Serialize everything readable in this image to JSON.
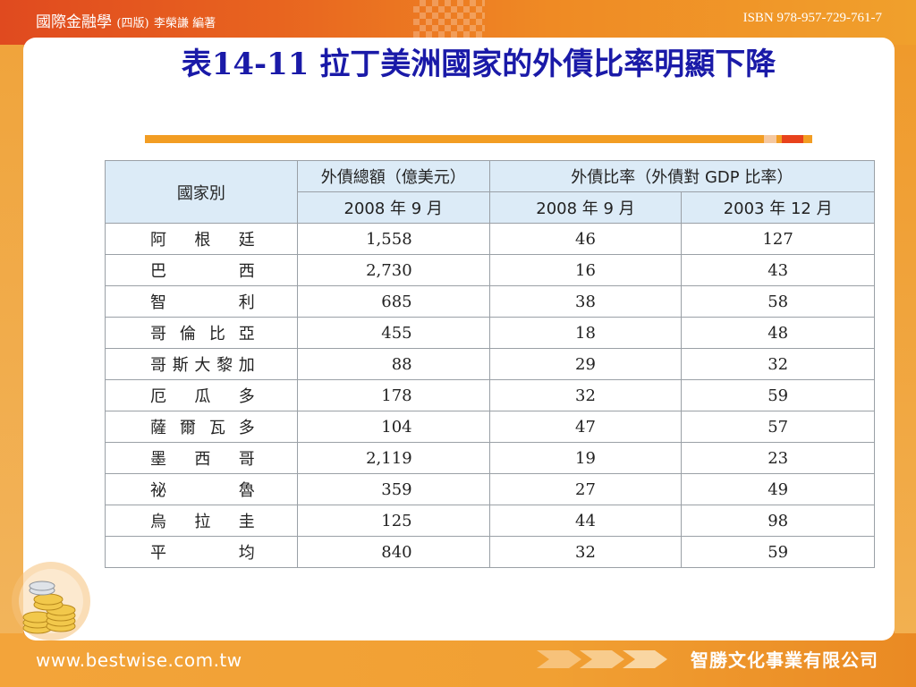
{
  "header": {
    "book_title": "國際金融學",
    "edition": "(四版)",
    "author": "李榮謙 編著",
    "isbn": "ISBN 978-957-729-761-7"
  },
  "slide": {
    "title": "表14-11 拉丁美洲國家的外債比率明顯下降"
  },
  "table": {
    "header_row1": {
      "country": "國家別",
      "total_debt": "外債總額（億美元）",
      "debt_ratio": "外債比率（外債對 GDP 比率）"
    },
    "header_row2": {
      "col2": "2008 年 9 月",
      "col3": "2008 年 9 月",
      "col4": "2003 年 12 月"
    },
    "rows": [
      {
        "country": "阿根廷",
        "debt": "1,558",
        "ratio2008": "46",
        "ratio2003": "127"
      },
      {
        "country": "巴西",
        "debt": "2,730",
        "ratio2008": "16",
        "ratio2003": "43"
      },
      {
        "country": "智利",
        "debt": "685",
        "ratio2008": "38",
        "ratio2003": "58"
      },
      {
        "country": "哥倫比亞",
        "debt": "455",
        "ratio2008": "18",
        "ratio2003": "48"
      },
      {
        "country": "哥斯大黎加",
        "debt": "88",
        "ratio2008": "29",
        "ratio2003": "32"
      },
      {
        "country": "厄瓜多",
        "debt": "178",
        "ratio2008": "32",
        "ratio2003": "59"
      },
      {
        "country": "薩爾瓦多",
        "debt": "104",
        "ratio2008": "47",
        "ratio2003": "57"
      },
      {
        "country": "墨西哥",
        "debt": "2,119",
        "ratio2008": "19",
        "ratio2003": "23"
      },
      {
        "country": "祕魯",
        "debt": "359",
        "ratio2008": "27",
        "ratio2003": "49"
      },
      {
        "country": "烏拉圭",
        "debt": "125",
        "ratio2008": "44",
        "ratio2003": "98"
      },
      {
        "country": "平均",
        "debt": "840",
        "ratio2008": "32",
        "ratio2003": "59"
      }
    ]
  },
  "footer": {
    "url": "www.bestwise.com.tw",
    "publisher": "智勝文化事業有限公司"
  },
  "icons": {
    "coins": "coin-stack-icon",
    "arrows": "arrow-chevrons-icon"
  },
  "colors": {
    "title": "#1a1aa8",
    "header_fill": "#dcebf7",
    "accent_orange": "#f29d23",
    "accent_red": "#e8421c"
  }
}
